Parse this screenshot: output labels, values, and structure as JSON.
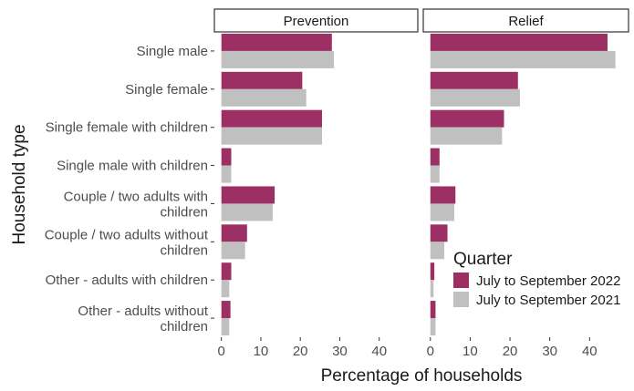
{
  "chart_data": {
    "type": "bar",
    "orientation": "horizontal",
    "ylabel": "Household type",
    "xlabel": "Percentage of households",
    "xlim": [
      0,
      48
    ],
    "xticks": [
      0,
      10,
      20,
      30,
      40
    ],
    "categories": [
      [
        "Single male"
      ],
      [
        "Single female"
      ],
      [
        "Single female with children"
      ],
      [
        "Single male with children"
      ],
      [
        "Couple / two adults with",
        "children"
      ],
      [
        "Couple / two adults without",
        "children"
      ],
      [
        "Other - adults with children"
      ],
      [
        "Other - adults without",
        "children"
      ]
    ],
    "legend": {
      "title": "Quarter",
      "placement": "bottom-right",
      "entries": [
        "July to September 2022",
        "July to September 2021"
      ]
    },
    "colors": {
      "2022": "#9c2f63",
      "2021": "#c0c0c0"
    },
    "panels": [
      {
        "title": "Prevention",
        "series": [
          {
            "name": "July to September 2022",
            "values": [
              28,
              20.5,
              25.5,
              2.5,
              13.5,
              6.5,
              2.5,
              2.3
            ]
          },
          {
            "name": "July to September 2021",
            "values": [
              28.5,
              21.5,
              25.5,
              2.5,
              13,
              6,
              2,
              2
            ]
          }
        ]
      },
      {
        "title": "Relief",
        "series": [
          {
            "name": "July to September 2022",
            "values": [
              44.5,
              22,
              18.5,
              2.3,
              6.3,
              4.3,
              1,
              1.3
            ]
          },
          {
            "name": "July to September 2021",
            "values": [
              46.5,
              22.5,
              18,
              2.3,
              6,
              3.5,
              0.8,
              1.3
            ]
          }
        ]
      }
    ]
  }
}
